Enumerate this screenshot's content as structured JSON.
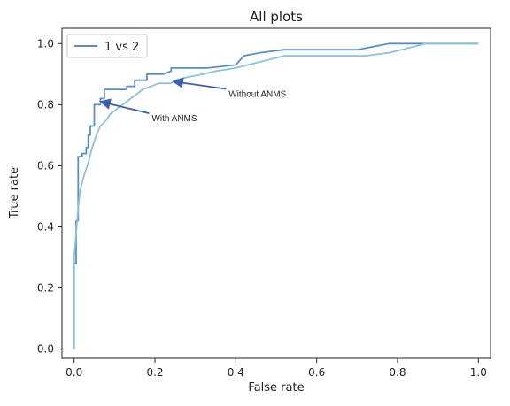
{
  "chart_data": {
    "type": "line",
    "title": "All plots",
    "xlabel": "False rate",
    "ylabel": "True rate",
    "xlim": [
      -0.03,
      1.03
    ],
    "ylim": [
      -0.03,
      1.05
    ],
    "xticks": [
      0.0,
      0.2,
      0.4,
      0.6,
      0.8,
      1.0
    ],
    "yticks": [
      0.0,
      0.2,
      0.4,
      0.6,
      0.8,
      1.0
    ],
    "xtick_labels": [
      "0.0",
      "0.2",
      "0.4",
      "0.6",
      "0.8",
      "1.0"
    ],
    "ytick_labels": [
      "0.0",
      "0.2",
      "0.4",
      "0.6",
      "0.8",
      "1.0"
    ],
    "grid": false,
    "legend": {
      "position": "top-left",
      "entries": [
        "1 vs 2"
      ]
    },
    "colors": {
      "with_anms": "#5b8fc0",
      "without_anms": "#8fc1d8",
      "arrow": "#3f5fa8"
    },
    "series": [
      {
        "points": [
          [
            0.0,
            0.0
          ],
          [
            0.0,
            0.28
          ],
          [
            0.005,
            0.28
          ],
          [
            0.005,
            0.42
          ],
          [
            0.01,
            0.42
          ],
          [
            0.01,
            0.63
          ],
          [
            0.02,
            0.63
          ],
          [
            0.02,
            0.64
          ],
          [
            0.03,
            0.64
          ],
          [
            0.03,
            0.66
          ],
          [
            0.035,
            0.66
          ],
          [
            0.035,
            0.7
          ],
          [
            0.04,
            0.7
          ],
          [
            0.04,
            0.73
          ],
          [
            0.05,
            0.73
          ],
          [
            0.05,
            0.8
          ],
          [
            0.065,
            0.8
          ],
          [
            0.065,
            0.82
          ],
          [
            0.075,
            0.82
          ],
          [
            0.075,
            0.85
          ],
          [
            0.13,
            0.85
          ],
          [
            0.13,
            0.86
          ],
          [
            0.15,
            0.86
          ],
          [
            0.15,
            0.88
          ],
          [
            0.18,
            0.88
          ],
          [
            0.18,
            0.9
          ],
          [
            0.22,
            0.9
          ],
          [
            0.24,
            0.91
          ],
          [
            0.24,
            0.92
          ],
          [
            0.33,
            0.92
          ],
          [
            0.4,
            0.93
          ],
          [
            0.42,
            0.96
          ],
          [
            0.46,
            0.97
          ],
          [
            0.52,
            0.98
          ],
          [
            0.7,
            0.98
          ],
          [
            0.78,
            1.0
          ],
          [
            1.0,
            1.0
          ]
        ]
      },
      {
        "points": [
          [
            0.0,
            0.0
          ],
          [
            0.0,
            0.3
          ],
          [
            0.005,
            0.38
          ],
          [
            0.01,
            0.46
          ],
          [
            0.015,
            0.52
          ],
          [
            0.025,
            0.57
          ],
          [
            0.035,
            0.61
          ],
          [
            0.045,
            0.66
          ],
          [
            0.055,
            0.7
          ],
          [
            0.065,
            0.73
          ],
          [
            0.08,
            0.75
          ],
          [
            0.09,
            0.77
          ],
          [
            0.11,
            0.79
          ],
          [
            0.13,
            0.81
          ],
          [
            0.15,
            0.83
          ],
          [
            0.17,
            0.85
          ],
          [
            0.19,
            0.86
          ],
          [
            0.21,
            0.87
          ],
          [
            0.24,
            0.87
          ],
          [
            0.25,
            0.88
          ],
          [
            0.28,
            0.89
          ],
          [
            0.32,
            0.9
          ],
          [
            0.35,
            0.91
          ],
          [
            0.4,
            0.92
          ],
          [
            0.43,
            0.93
          ],
          [
            0.46,
            0.94
          ],
          [
            0.52,
            0.96
          ],
          [
            0.6,
            0.96
          ],
          [
            0.72,
            0.96
          ],
          [
            0.78,
            0.97
          ],
          [
            0.84,
            0.99
          ],
          [
            0.87,
            1.0
          ],
          [
            1.0,
            1.0
          ]
        ]
      }
    ],
    "annotations": [
      {
        "text": "With ANMS",
        "xy": [
          0.065,
          0.81
        ],
        "xytext": [
          0.19,
          0.76
        ]
      },
      {
        "text": "Without ANMS",
        "xy": [
          0.245,
          0.876
        ],
        "xytext": [
          0.38,
          0.84
        ]
      }
    ]
  }
}
